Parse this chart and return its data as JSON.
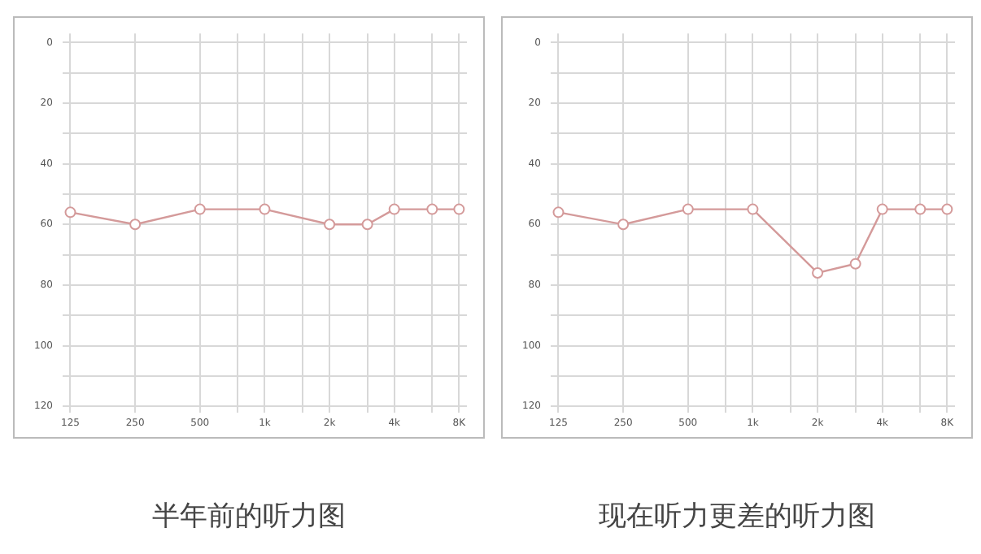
{
  "chart_data": [
    {
      "type": "line",
      "title": "半年前的听力图",
      "x": [
        125,
        250,
        500,
        1000,
        2000,
        3000,
        4000,
        6000,
        8000
      ],
      "log": "x",
      "xlim": [
        115,
        8700
      ],
      "xticks": [
        125,
        250,
        500,
        {
          "value": 750,
          "label": null
        },
        {
          "value": 1000,
          "label": "1k"
        },
        {
          "value": 1500,
          "label": null
        },
        {
          "value": 2000,
          "label": "2k"
        },
        {
          "value": 3000,
          "label": null
        },
        {
          "value": 4000,
          "label": "4k"
        },
        {
          "value": 6000,
          "label": null
        },
        {
          "value": 8000,
          "label": "8K"
        }
      ],
      "ylim": [
        122,
        -3
      ],
      "yticks": [
        0,
        {
          "value": 10,
          "label": null
        },
        20,
        {
          "value": 30,
          "label": null
        },
        40,
        {
          "value": 50,
          "label": null
        },
        60,
        {
          "value": 70,
          "label": null
        },
        80,
        {
          "value": 90,
          "label": null
        },
        100,
        {
          "value": 110,
          "label": null
        },
        120
      ],
      "grid": true,
      "marker": "circle",
      "line_style": "solid",
      "series": [
        {
          "color": "#d49a9a",
          "values": [
            56,
            60,
            55,
            55,
            60,
            60,
            55,
            55,
            55
          ]
        }
      ]
    },
    {
      "type": "line",
      "title": "现在听力更差的听力图",
      "x": [
        125,
        250,
        500,
        1000,
        2000,
        3000,
        4000,
        6000,
        8000
      ],
      "log": "x",
      "xlim": [
        115,
        8700
      ],
      "xticks": [
        125,
        250,
        500,
        {
          "value": 750,
          "label": null
        },
        {
          "value": 1000,
          "label": "1k"
        },
        {
          "value": 1500,
          "label": null
        },
        {
          "value": 2000,
          "label": "2k"
        },
        {
          "value": 3000,
          "label": null
        },
        {
          "value": 4000,
          "label": "4k"
        },
        {
          "value": 6000,
          "label": null
        },
        {
          "value": 8000,
          "label": "8K"
        }
      ],
      "ylim": [
        122,
        -3
      ],
      "yticks": [
        0,
        {
          "value": 10,
          "label": null
        },
        20,
        {
          "value": 30,
          "label": null
        },
        40,
        {
          "value": 50,
          "label": null
        },
        60,
        {
          "value": 70,
          "label": null
        },
        80,
        {
          "value": 90,
          "label": null
        },
        100,
        {
          "value": 110,
          "label": null
        },
        120
      ],
      "grid": true,
      "marker": "circle",
      "line_style": "solid",
      "series": [
        {
          "color": "#d49a9a",
          "values": [
            56,
            60,
            55,
            55,
            76,
            73,
            55,
            55,
            55
          ]
        }
      ]
    }
  ]
}
